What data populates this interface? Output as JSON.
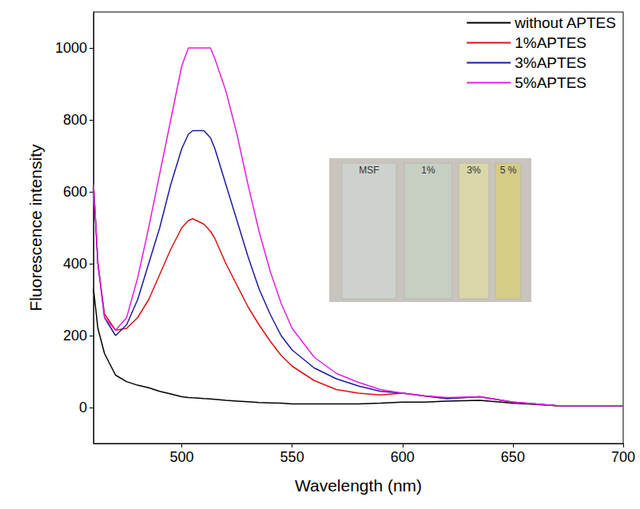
{
  "chart_data": {
    "type": "line",
    "x_label": "Wavelength (nm)",
    "y_label": "Fluorescence intensity",
    "x": [
      460,
      462,
      465,
      470,
      475,
      480,
      485,
      490,
      495,
      500,
      503,
      505,
      510,
      513,
      515,
      520,
      525,
      530,
      535,
      540,
      545,
      550,
      560,
      570,
      580,
      590,
      600,
      610,
      620,
      635,
      650,
      670,
      700
    ],
    "series": [
      {
        "name": "without APTES",
        "color": "#000000",
        "values": [
          330,
          220,
          150,
          90,
          72,
          62,
          55,
          45,
          38,
          30,
          28,
          27,
          25,
          24,
          23,
          20,
          18,
          16,
          14,
          13,
          12,
          10,
          10,
          10,
          10,
          12,
          15,
          15,
          18,
          20,
          12,
          5,
          5
        ]
      },
      {
        "name": "1%APTES",
        "color": "#e01010",
        "values": [
          620,
          400,
          260,
          215,
          220,
          250,
          300,
          370,
          440,
          500,
          520,
          525,
          510,
          490,
          470,
          400,
          340,
          280,
          230,
          185,
          145,
          115,
          75,
          50,
          40,
          35,
          40,
          32,
          25,
          30,
          15,
          5,
          5
        ]
      },
      {
        "name": "3%APTES",
        "color": "#1c1c9e",
        "values": [
          620,
          400,
          250,
          200,
          230,
          300,
          400,
          500,
          620,
          720,
          760,
          770,
          770,
          750,
          720,
          620,
          520,
          420,
          330,
          260,
          200,
          160,
          110,
          80,
          60,
          45,
          40,
          32,
          25,
          30,
          15,
          5,
          5
        ]
      },
      {
        "name": "5%APTES",
        "color": "#e020e0",
        "values": [
          620,
          400,
          250,
          215,
          250,
          360,
          500,
          650,
          800,
          950,
          1000,
          1000,
          1000,
          1000,
          970,
          880,
          760,
          620,
          490,
          380,
          290,
          220,
          140,
          95,
          70,
          50,
          40,
          33,
          28,
          30,
          15,
          5,
          5
        ]
      }
    ],
    "xlim": [
      460,
      700
    ],
    "xticks": [
      500,
      550,
      600,
      650,
      700
    ],
    "ylim": [
      -100,
      1100
    ],
    "yticks": [
      0,
      200,
      400,
      600,
      800,
      1000
    ],
    "grid": false,
    "legend": "upper right",
    "marker": "none",
    "line_style": "solid",
    "annotations": [
      "MSF",
      "1%",
      "3%",
      "5 %"
    ]
  }
}
